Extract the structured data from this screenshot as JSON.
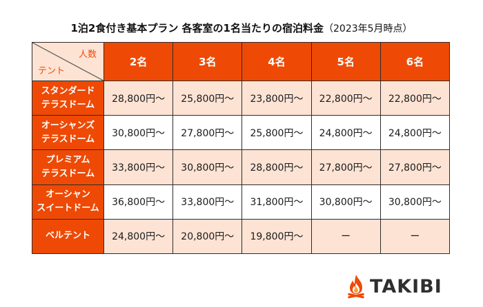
{
  "title": {
    "main": "1泊2食付き基本プラン 各客室の1名当たりの宿泊料金",
    "note": "（2023年5月時点）"
  },
  "table": {
    "corner_top": "人数",
    "corner_bottom": "テント",
    "headers": [
      "2名",
      "3名",
      "4名",
      "5名",
      "6名"
    ],
    "rows": [
      {
        "line1": "スタンダード",
        "line2": "テラスドーム",
        "cells": [
          "28,800円～",
          "25,800円～",
          "23,800円～",
          "22,800円～",
          "22,800円～"
        ]
      },
      {
        "line1": "オーシャンズ",
        "line2": "テラスドーム",
        "cells": [
          "30,800円～",
          "27,800円～",
          "25,800円～",
          "24,800円～",
          "24,800円～"
        ]
      },
      {
        "line1": "プレミアム",
        "line2": "テラスドーム",
        "cells": [
          "33,800円～",
          "30,800円～",
          "28,800円～",
          "27,800円～",
          "27,800円～"
        ]
      },
      {
        "line1": "オーシャン",
        "line2": "スイートドーム",
        "cells": [
          "36,800円～",
          "33,800円～",
          "31,800円～",
          "30,800円～",
          "30,800円～"
        ]
      },
      {
        "line1": "ベルテント",
        "line2": "",
        "cells": [
          "24,800円～",
          "20,800円～",
          "19,800円～",
          "ー",
          "ー"
        ]
      }
    ]
  },
  "brand": {
    "name": "TAKIBI",
    "icon": "campfire-icon",
    "color_primary": "#ee4a05",
    "color_light": "#fde3d4"
  }
}
